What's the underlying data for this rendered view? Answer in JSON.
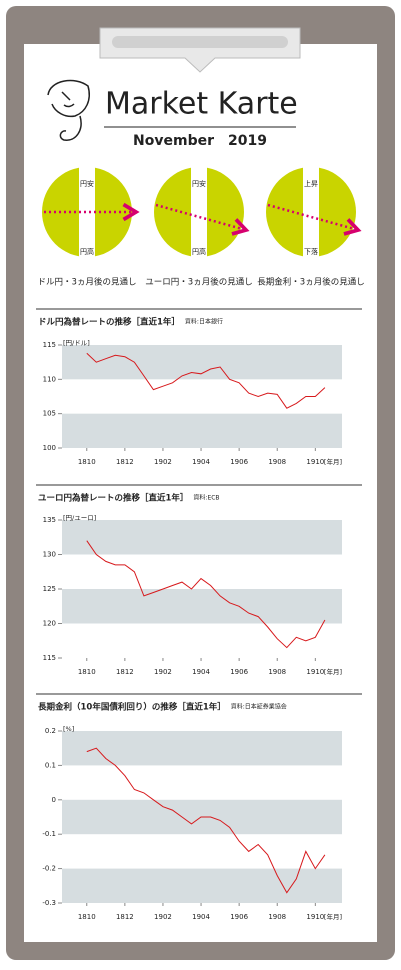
{
  "header": {
    "title": "Market Karte",
    "date": "November　2019"
  },
  "outlooks": [
    {
      "top": "円安",
      "bottom": "円高",
      "caption": "ドル円・3ヵ月後の見通し"
    },
    {
      "top": "円安",
      "bottom": "円高",
      "caption": "ユーロ円・3ヵ月後の見通し"
    },
    {
      "top": "上昇",
      "bottom": "下落",
      "caption": "長期金利・3ヵ月後の見通し"
    }
  ],
  "chart_data": [
    {
      "type": "line",
      "title": "ドル円為替レートの推移［直近1年］",
      "source": "資料:日本銀行",
      "y_unit": "[円/ドル]",
      "x_unit": "[年月]",
      "color": "#d7191c",
      "x": [
        0,
        0.5,
        1,
        1.5,
        2,
        2.5,
        3,
        3.5,
        4,
        4.5,
        5,
        5.5,
        6,
        6.5,
        7,
        7.5,
        8,
        8.5,
        9,
        9.5,
        10,
        10.5,
        11,
        11.5,
        12,
        12.5
      ],
      "values": [
        113.8,
        112.5,
        113,
        113.5,
        113.3,
        112.5,
        110.5,
        108.5,
        109,
        109.5,
        110.5,
        111,
        110.8,
        111.5,
        111.8,
        110,
        109.5,
        108,
        107.5,
        108,
        107.8,
        105.8,
        106.5,
        107.5,
        107.5,
        108.8
      ],
      "xlim": [
        -1.3,
        13.4
      ],
      "ylim": [
        100,
        115
      ],
      "xticks": [
        {
          "value": 0,
          "label": "1810"
        },
        {
          "value": 2,
          "label": "1812"
        },
        {
          "value": 4,
          "label": "1902"
        },
        {
          "value": 6,
          "label": "1904"
        },
        {
          "value": 8,
          "label": "1906"
        },
        {
          "value": 10,
          "label": "1908"
        },
        {
          "value": 12,
          "label": "1910"
        }
      ],
      "yticks": [
        100,
        105,
        110,
        115
      ]
    },
    {
      "type": "line",
      "title": "ユーロ円為替レートの推移［直近1年］",
      "source": "資料:ECB",
      "y_unit": "[円/ユーロ]",
      "x_unit": "[年月]",
      "color": "#d7191c",
      "x": [
        0,
        0.5,
        1,
        1.5,
        2,
        2.5,
        3,
        3.5,
        4,
        4.5,
        5,
        5.5,
        6,
        6.5,
        7,
        7.5,
        8,
        8.5,
        9,
        9.5,
        10,
        10.5,
        11,
        11.5,
        12,
        12.5
      ],
      "values": [
        132,
        130,
        129,
        128.5,
        128.5,
        127.5,
        124,
        124.5,
        125,
        125.5,
        126,
        125,
        126.5,
        125.5,
        124,
        123,
        122.5,
        121.5,
        121,
        119.5,
        117.8,
        116.5,
        118,
        117.5,
        118,
        120.5
      ],
      "xlim": [
        -1.3,
        13.4
      ],
      "ylim": [
        115,
        135
      ],
      "xticks": [
        {
          "value": 0,
          "label": "1810"
        },
        {
          "value": 2,
          "label": "1812"
        },
        {
          "value": 4,
          "label": "1902"
        },
        {
          "value": 6,
          "label": "1904"
        },
        {
          "value": 8,
          "label": "1906"
        },
        {
          "value": 10,
          "label": "1908"
        },
        {
          "value": 12,
          "label": "1910"
        }
      ],
      "yticks": [
        115,
        120,
        125,
        130,
        135
      ]
    },
    {
      "type": "line",
      "title": "長期金利（10年国債利回り）の推移［直近1年］",
      "source": "資料:日本証券業協会",
      "y_unit": "[%]",
      "x_unit": "[年月]",
      "color": "#d7191c",
      "x": [
        0,
        0.5,
        1,
        1.5,
        2,
        2.5,
        3,
        3.5,
        4,
        4.5,
        5,
        5.5,
        6,
        6.5,
        7,
        7.5,
        8,
        8.5,
        9,
        9.5,
        10,
        10.5,
        11,
        11.5,
        12,
        12.5
      ],
      "values": [
        0.14,
        0.15,
        0.12,
        0.1,
        0.07,
        0.03,
        0.02,
        0,
        -0.02,
        -0.03,
        -0.05,
        -0.07,
        -0.05,
        -0.05,
        -0.06,
        -0.08,
        -0.12,
        -0.15,
        -0.13,
        -0.16,
        -0.22,
        -0.27,
        -0.23,
        -0.15,
        -0.2,
        -0.16
      ],
      "xlim": [
        -1.3,
        13.4
      ],
      "ylim": [
        -0.3,
        0.2
      ],
      "xticks": [
        {
          "value": 0,
          "label": "1810"
        },
        {
          "value": 2,
          "label": "1812"
        },
        {
          "value": 4,
          "label": "1902"
        },
        {
          "value": 6,
          "label": "1904"
        },
        {
          "value": 8,
          "label": "1906"
        },
        {
          "value": 10,
          "label": "1908"
        },
        {
          "value": 12,
          "label": "1910"
        }
      ],
      "yticks": [
        -0.3,
        -0.2,
        -0.1,
        0,
        0.1,
        0.2
      ]
    }
  ]
}
